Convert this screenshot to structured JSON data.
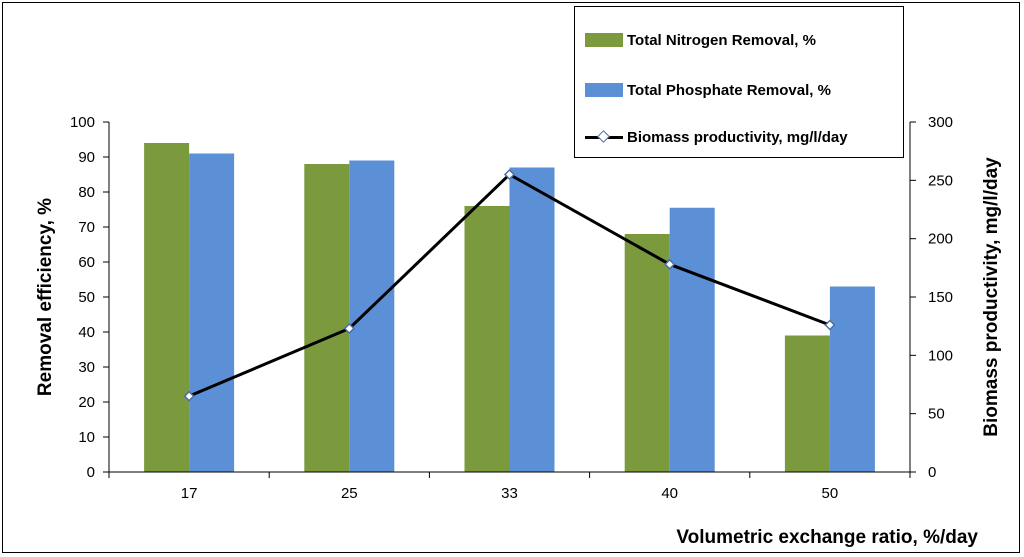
{
  "chart_data": {
    "type": "bar",
    "categories": [
      "17",
      "25",
      "33",
      "40",
      "50"
    ],
    "series": [
      {
        "name": "Total Nitrogen Removal, %",
        "kind": "bar",
        "axis": "left",
        "color": "#7b9a3e",
        "values": [
          94,
          88,
          76,
          68,
          39
        ]
      },
      {
        "name": "Total Phosphate Removal, %",
        "kind": "bar",
        "axis": "left",
        "color": "#5b8fd6",
        "values": [
          91,
          89,
          87,
          75.5,
          53
        ]
      },
      {
        "name": "Biomass productivity, mg/l/day",
        "kind": "line",
        "axis": "right",
        "color": "#000000",
        "values": [
          65,
          123,
          255,
          178,
          126
        ]
      }
    ],
    "xlabel": "Volumetric exchange ratio, %/day",
    "ylabel": "Removal efficiency, %",
    "y2label": "Biomass productivity, mg/l/day",
    "ylim": [
      0,
      100
    ],
    "y2lim": [
      0,
      300
    ],
    "yticks": [
      "0",
      "10",
      "20",
      "30",
      "40",
      "50",
      "60",
      "70",
      "80",
      "90",
      "100"
    ],
    "y2ticks": [
      "0",
      "50",
      "100",
      "150",
      "200",
      "250",
      "300"
    ],
    "grid": false,
    "legend_position": "top-right"
  }
}
